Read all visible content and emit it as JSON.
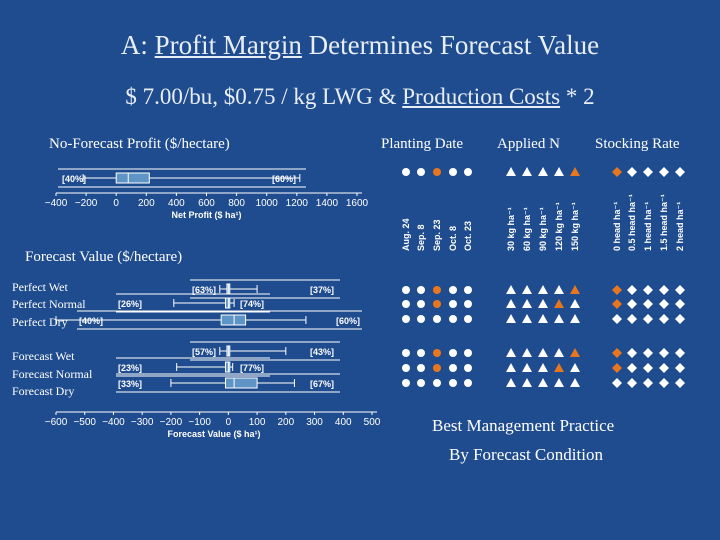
{
  "title": {
    "prefix": "A: ",
    "underlined": "Profit Margin",
    "suffix": " Determines Forecast Value"
  },
  "subtitle": {
    "prefix": "$ 7.00/bu,   $0.75 / kg LWG  & ",
    "underlined": "Production Costs",
    "suffix": " * 2"
  },
  "headers": {
    "no_forecast": "No-Forecast Profit ($/hectare)",
    "planting_date": "Planting Date",
    "applied_n": "Applied N",
    "stocking_rate": "Stocking Rate",
    "forecast_value": "Forecast Value ($/hectare)"
  },
  "row_labels": {
    "perfect_wet": "Perfect Wet",
    "perfect_normal": "Perfect Normal",
    "perfect_dry": "Perfect Dry",
    "forecast_wet": "Forecast Wet",
    "forecast_normal": "Forecast  Normal",
    "forecast_dry": "Forecast  Dry"
  },
  "bmp": {
    "line1": "Best Management Practice",
    "line2": "By Forecast Condition"
  },
  "colors": {
    "background": "#1f4c8e",
    "highlight": "#e8761e",
    "box_fill": "#5f95c6",
    "marker": "#ffffff"
  },
  "chart_data": [
    {
      "type": "box",
      "name_text": "No-Forecast Profit",
      "xlabel": "Net Profit ($ ha¹)",
      "xlim": [
        -400,
        1600
      ],
      "ticks": [
        -400,
        -200,
        0,
        200,
        400,
        600,
        800,
        1000,
        1200,
        1400,
        1600
      ],
      "boxes": [
        {
          "min": -220,
          "q1": 0,
          "median": 80,
          "q3": 220,
          "max": 1220,
          "left_pct": "[40%]",
          "right_pct": "[60%]"
        }
      ]
    },
    {
      "type": "box",
      "name_text": "Forecast Value",
      "xlabel": "Forecast Value ($ ha¹)",
      "xlim": [
        -600,
        500
      ],
      "ticks": [
        -600,
        -500,
        -400,
        -300,
        -200,
        -100,
        0,
        100,
        200,
        300,
        400,
        500
      ],
      "boxes": [
        {
          "row": "Perfect Wet",
          "min": -30,
          "q1": -5,
          "median": 0,
          "q3": 5,
          "max": 100,
          "left_pct": "[63%]",
          "right_pct": "[37%]"
        },
        {
          "row": "Perfect Normal",
          "min": -190,
          "q1": -10,
          "median": 0,
          "q3": 5,
          "max": 20,
          "left_pct": "[26%]",
          "right_pct": "[74%]"
        },
        {
          "row": "Perfect Dry",
          "min": -600,
          "q1": -25,
          "median": 20,
          "q3": 60,
          "max": 270,
          "left_pct": "[40%]",
          "right_pct": "[60%]"
        },
        {
          "row": "Forecast Wet",
          "min": -30,
          "q1": -5,
          "median": 0,
          "q3": 5,
          "max": 200,
          "left_pct": "[57%]",
          "right_pct": "[43%]"
        },
        {
          "row": "Forecast Normal",
          "min": -180,
          "q1": -10,
          "median": 0,
          "q3": 5,
          "max": 15,
          "left_pct": "[23%]",
          "right_pct": "[77%]"
        },
        {
          "row": "Forecast Dry",
          "min": -200,
          "q1": -10,
          "median": 20,
          "q3": 100,
          "max": 230,
          "left_pct": "[33%]",
          "right_pct": "[67%]"
        }
      ]
    },
    {
      "type": "table",
      "name_text": "Best Management Practice",
      "groups": [
        {
          "name": "Planting Date",
          "shape": "circle",
          "columns": [
            "Aug. 24",
            "Sep. 8",
            "Sep. 23",
            "Oct. 8",
            "Oct. 23"
          ]
        },
        {
          "name": "Applied N",
          "shape": "triangle",
          "columns": [
            "30 kg ha⁻¹",
            "60 kg ha⁻¹",
            "90 kg ha⁻¹",
            "120 kg ha⁻¹",
            "150 kg ha⁻¹"
          ]
        },
        {
          "name": "Stocking Rate",
          "shape": "diamond",
          "columns": [
            "0 head ha⁻¹",
            "0.5 head ha⁻¹",
            "1 head ha⁻¹",
            "1.5 head ha⁻¹",
            "2 head ha⁻¹"
          ]
        }
      ],
      "rows": [
        {
          "row": "No-Forecast",
          "best": [
            2,
            4,
            0
          ]
        },
        {
          "row": "Perfect Wet",
          "best": [
            2,
            4,
            0
          ]
        },
        {
          "row": "Perfect Normal",
          "best": [
            2,
            3,
            0
          ]
        },
        {
          "row": "Perfect Dry",
          "best": [
            null,
            null,
            null
          ]
        },
        {
          "row": "Forecast Wet",
          "best": [
            2,
            4,
            0
          ]
        },
        {
          "row": "Forecast Normal",
          "best": [
            2,
            3,
            0
          ]
        },
        {
          "row": "Forecast Dry",
          "best": [
            null,
            null,
            null
          ]
        }
      ]
    }
  ]
}
